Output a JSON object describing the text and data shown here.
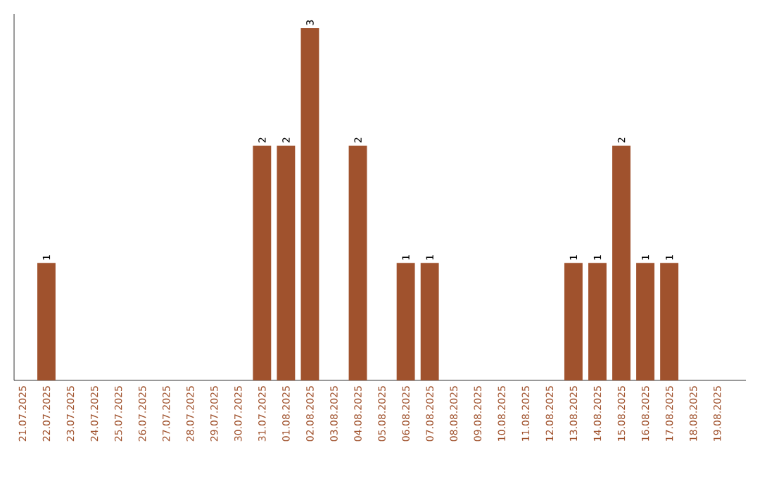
{
  "chart_data": {
    "type": "bar",
    "categories": [
      "21.07.2025",
      "22.07.2025",
      "23.07.2025",
      "24.07.2025",
      "25.07.2025",
      "26.07.2025",
      "27.07.2025",
      "28.07.2025",
      "29.07.2025",
      "30.07.2025",
      "31.07.2025",
      "01.08.2025",
      "02.08.2025",
      "03.08.2025",
      "04.08.2025",
      "05.08.2025",
      "06.08.2025",
      "07.08.2025",
      "08.08.2025",
      "09.08.2025",
      "10.08.2025",
      "11.08.2025",
      "12.08.2025",
      "13.08.2025",
      "14.08.2025",
      "15.08.2025",
      "16.08.2025",
      "17.08.2025",
      "18.08.2025",
      "19.08.2025"
    ],
    "values": [
      0,
      1,
      0,
      0,
      0,
      0,
      0,
      0,
      0,
      0,
      2,
      2,
      3,
      0,
      2,
      0,
      1,
      1,
      0,
      0,
      0,
      0,
      0,
      1,
      1,
      2,
      1,
      1,
      0,
      0
    ],
    "value_labels": [
      null,
      "1",
      null,
      null,
      null,
      null,
      null,
      null,
      null,
      null,
      "2",
      "2",
      "3",
      null,
      "2",
      null,
      "1",
      "1",
      null,
      null,
      null,
      null,
      null,
      "1",
      "1",
      "2",
      "1",
      "1",
      null,
      null
    ],
    "color": "#a0522d"
  }
}
